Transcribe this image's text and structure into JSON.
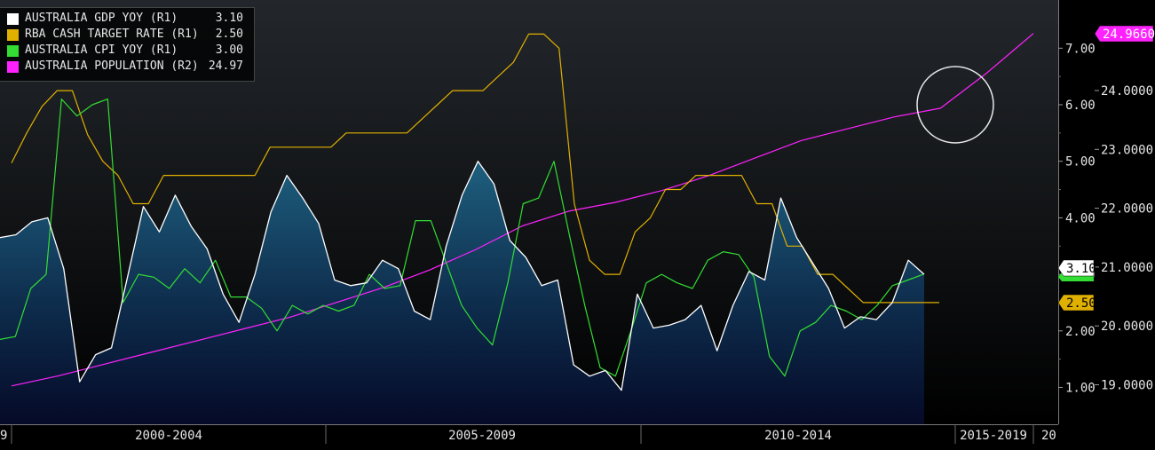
{
  "colors": {
    "background": "#000000",
    "gdp": "#ffffff",
    "rba": "#e0b000",
    "cpi": "#33dd33",
    "pop": "#ff22ff"
  },
  "legend": [
    {
      "label": "AUSTRALIA GDP YOY (R1)",
      "value": "3.10",
      "color": "#ffffff"
    },
    {
      "label": "RBA CASH TARGET RATE (R1)",
      "value": "2.50",
      "color": "#e0b000"
    },
    {
      "label": "AUSTRALIA CPI YOY (R1)",
      "value": "3.00",
      "color": "#33dd33"
    },
    {
      "label": "AUSTRALIA POPULATION (R2)",
      "value": "24.97",
      "color": "#ff22ff"
    }
  ],
  "chart_data": {
    "type": "line",
    "x_axis": {
      "labels": [
        "2000-2004",
        "2005-2009",
        "2010-2014",
        "2015-2019"
      ],
      "edge_labels": [
        "9",
        "20"
      ]
    },
    "r1_axis": {
      "ticks": [
        "1.00",
        "2.00",
        "3.00",
        "4.00",
        "5.00",
        "6.00",
        "7.00"
      ]
    },
    "r2_axis": {
      "ticks": [
        "19.0000",
        "20.0000",
        "21.0000",
        "22.0000",
        "23.0000",
        "24.0000"
      ]
    },
    "last_value_tags": {
      "gdp": "3.10",
      "rba": "2.50",
      "pop": "24.9660"
    },
    "series": [
      {
        "key": "gdp",
        "axis": "R1",
        "style": "area",
        "values": [
          3.65,
          3.7,
          3.93,
          4.0,
          3.1,
          1.1,
          1.58,
          1.7,
          2.95,
          4.2,
          3.75,
          4.4,
          3.85,
          3.45,
          2.65,
          2.15,
          3.0,
          4.1,
          4.75,
          4.35,
          3.9,
          2.9,
          2.8,
          2.85,
          3.25,
          3.1,
          2.35,
          2.2,
          3.5,
          4.4,
          5.0,
          4.6,
          3.6,
          3.3,
          2.8,
          2.9,
          1.4,
          1.2,
          1.3,
          0.95,
          2.65,
          2.05,
          2.1,
          2.2,
          2.45,
          1.65,
          2.45,
          3.05,
          2.9,
          4.35,
          3.65,
          3.2,
          2.75,
          2.05,
          2.25,
          2.2,
          2.5,
          3.25,
          3.0
        ]
      },
      {
        "key": "rba",
        "axis": "R1",
        "style": "line",
        "values": [
          4.97,
          5.5,
          5.97,
          6.25,
          6.25,
          5.47,
          5.0,
          4.75,
          4.25,
          4.25,
          4.75,
          4.75,
          4.75,
          4.75,
          4.75,
          4.75,
          4.75,
          5.25,
          5.25,
          5.25,
          5.25,
          5.25,
          5.5,
          5.5,
          5.5,
          5.5,
          5.5,
          5.75,
          6.0,
          6.25,
          6.25,
          6.25,
          6.5,
          6.75,
          7.25,
          7.25,
          7.0,
          4.25,
          3.25,
          3.0,
          3.0,
          3.75,
          4.0,
          4.5,
          4.5,
          4.75,
          4.75,
          4.75,
          4.75,
          4.25,
          4.25,
          3.5,
          3.5,
          3.0,
          3.0,
          2.75,
          2.5,
          2.5,
          2.5,
          2.5,
          2.5,
          2.5
        ]
      },
      {
        "key": "cpi",
        "axis": "R1",
        "style": "line",
        "values": [
          1.85,
          1.9,
          2.75,
          3.0,
          6.1,
          5.8,
          6.0,
          6.1,
          2.5,
          3.0,
          2.95,
          2.75,
          3.1,
          2.85,
          3.25,
          2.6,
          2.6,
          2.4,
          2.0,
          2.45,
          2.3,
          2.45,
          2.35,
          2.45,
          3.0,
          2.75,
          2.8,
          3.95,
          3.95,
          3.2,
          2.45,
          2.05,
          1.75,
          2.85,
          4.25,
          4.35,
          5.0,
          3.7,
          2.45,
          1.35,
          1.2,
          2.0,
          2.85,
          3.0,
          2.85,
          2.75,
          3.25,
          3.4,
          3.35,
          2.95,
          1.55,
          1.2,
          2.0,
          2.15,
          2.45,
          2.35,
          2.2,
          2.45,
          2.8,
          2.9,
          3.0
        ]
      },
      {
        "key": "pop",
        "axis": "R2",
        "style": "line",
        "values": [
          18.98,
          19.15,
          19.35,
          19.55,
          19.75,
          19.95,
          20.15,
          20.4,
          20.65,
          20.95,
          21.3,
          21.7,
          21.95,
          22.1,
          22.3,
          22.55,
          22.85,
          23.15,
          23.35,
          23.55,
          23.7,
          24.3,
          24.97
        ]
      }
    ]
  }
}
